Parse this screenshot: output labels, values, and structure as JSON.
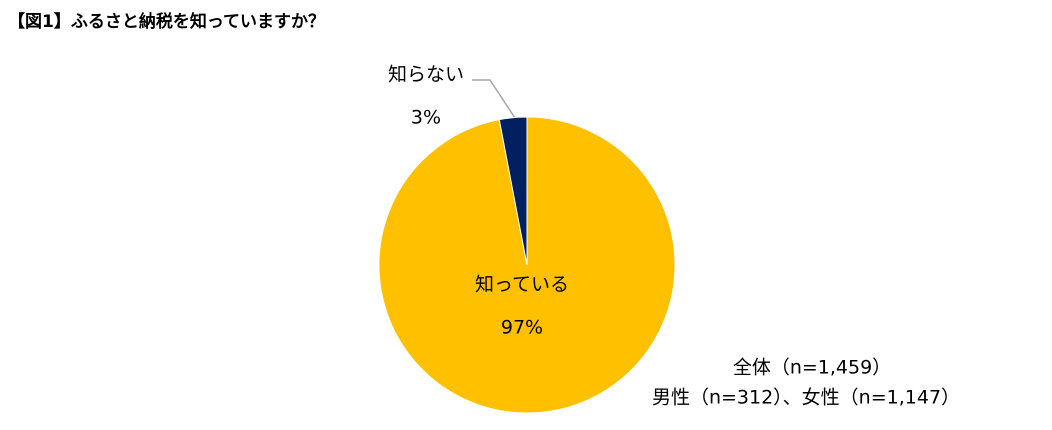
{
  "chart_data": {
    "type": "pie",
    "title": "【図1】ふるさと納税を知っていますか？",
    "categories": [
      "知っている",
      "知らない"
    ],
    "values": [
      97,
      3
    ],
    "value_labels": [
      "97%",
      "3%"
    ],
    "colors": [
      "#FFC000",
      "#002060"
    ],
    "notes": [
      "全体（n=1,459）",
      "男性（n=312）、女性（n=1,147）"
    ]
  }
}
